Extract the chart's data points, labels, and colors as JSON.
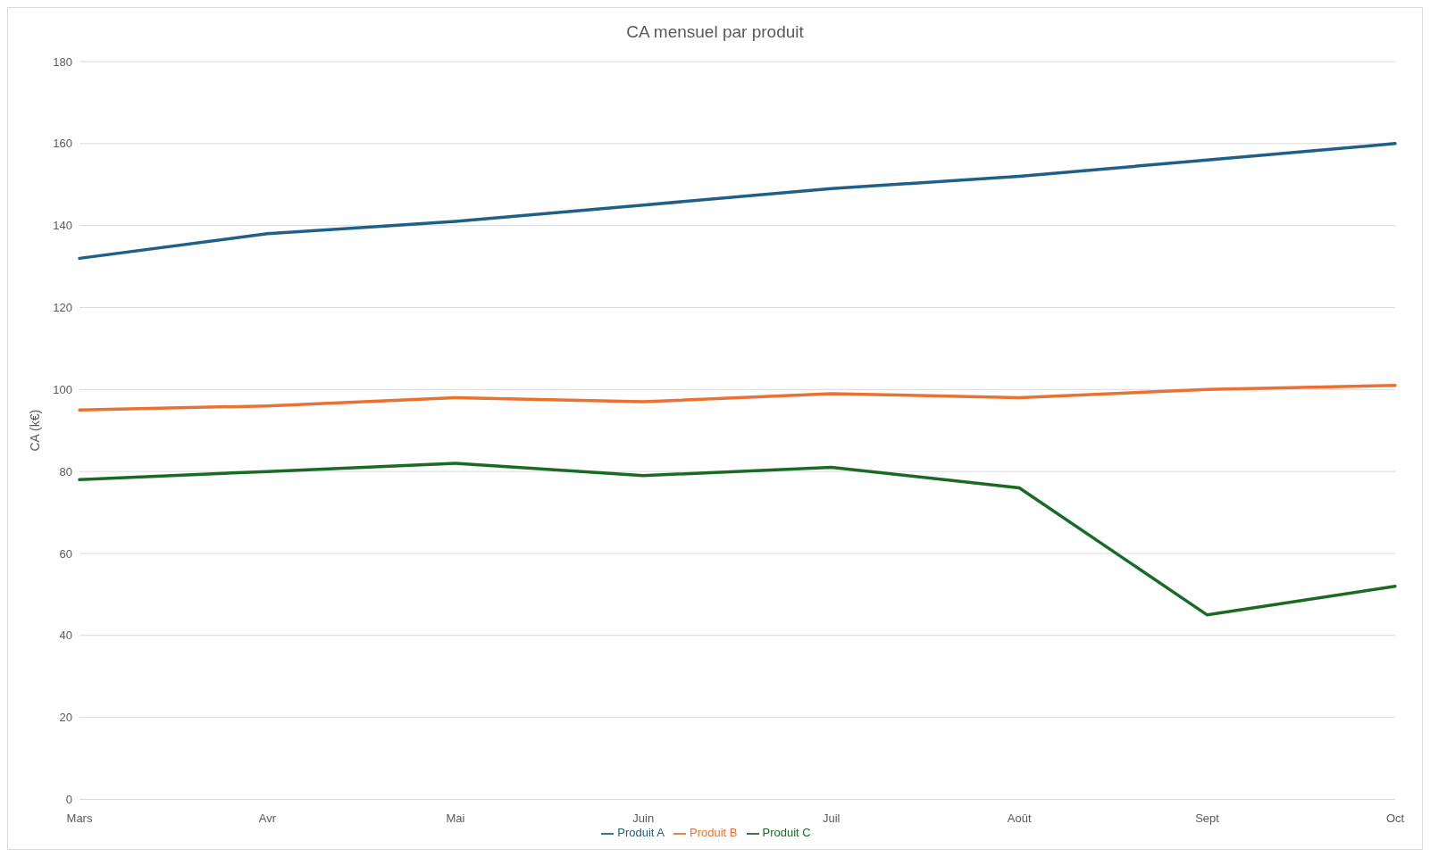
{
  "chart_data": {
    "type": "line",
    "title": "CA mensuel par produit",
    "ylabel": "CA (k€)",
    "categories": [
      "Mars",
      "Avr",
      "Mai",
      "Juin",
      "Juil",
      "Août",
      "Sept",
      "Oct"
    ],
    "series": [
      {
        "name": "Produit A",
        "color": "#1f6086",
        "values": [
          132,
          138,
          141,
          145,
          149,
          152,
          156,
          160
        ]
      },
      {
        "name": "Produit B",
        "color": "#e97132",
        "values": [
          95,
          96,
          98,
          97,
          99,
          98,
          100,
          101
        ]
      },
      {
        "name": "Produit C",
        "color": "#196b24",
        "values": [
          78,
          80,
          82,
          79,
          81,
          76,
          45,
          52
        ]
      }
    ],
    "ylim": [
      0,
      180
    ],
    "yticks": [
      0,
      20,
      40,
      60,
      80,
      100,
      120,
      140,
      160,
      180
    ],
    "grid": "y",
    "legend": "bottom",
    "marker": "none",
    "line_style": "solid"
  }
}
